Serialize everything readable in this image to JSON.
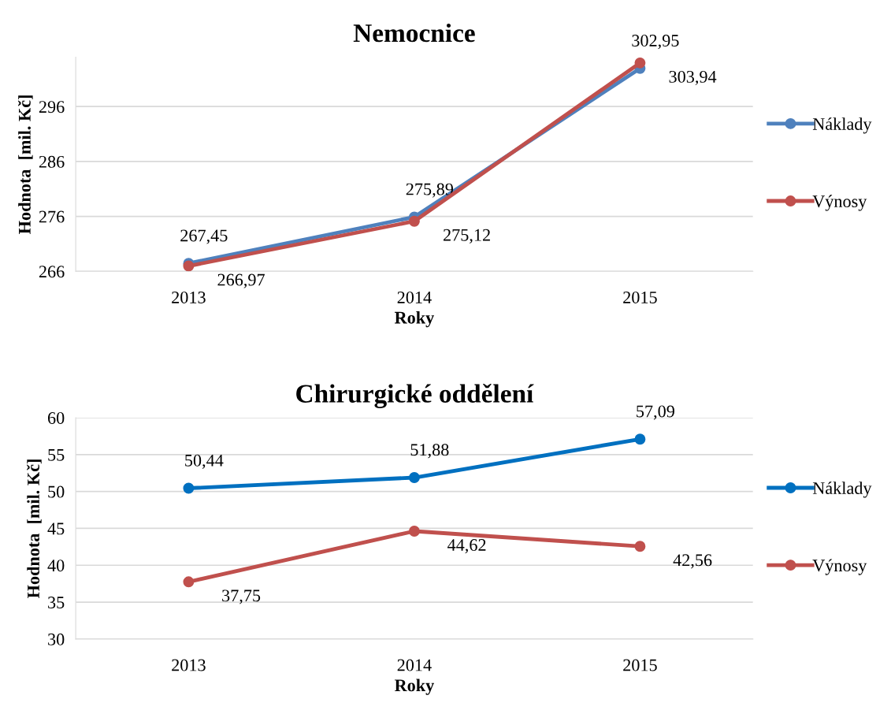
{
  "chart_data": [
    {
      "type": "line",
      "title": "Nemocnice",
      "xlabel": "Roky",
      "ylabel": "Hodnota  [mil. Kč]",
      "categories": [
        "2013",
        "2014",
        "2015"
      ],
      "ylim": [
        266,
        305
      ],
      "yticks": [
        266,
        276,
        286,
        296
      ],
      "grid": "y",
      "legend": "right",
      "marker": "circle",
      "line_style": "solid",
      "series": [
        {
          "name": "Náklady",
          "color": "#4f81bd",
          "values": [
            267.45,
            275.89,
            302.95
          ],
          "value_labels": [
            "267,45",
            "275,89",
            "302,95"
          ]
        },
        {
          "name": "Výnosy",
          "color": "#c0504d",
          "values": [
            266.97,
            275.12,
            303.94
          ],
          "value_labels": [
            "266,97",
            "275,12",
            "303,94"
          ]
        }
      ]
    },
    {
      "type": "line",
      "title": "Chirurgické oddělení",
      "xlabel": "Roky",
      "ylabel": "Hodnota  [mil. Kč]",
      "categories": [
        "2013",
        "2014",
        "2015"
      ],
      "ylim": [
        30,
        60
      ],
      "yticks": [
        30,
        35,
        40,
        45,
        50,
        55,
        60
      ],
      "grid": "y",
      "legend": "right",
      "marker": "circle",
      "line_style": "solid",
      "series": [
        {
          "name": "Náklady",
          "color": "#0070c0",
          "values": [
            50.44,
            51.88,
            57.09
          ],
          "value_labels": [
            "50,44",
            "51,88",
            "57,09"
          ]
        },
        {
          "name": "Výnosy",
          "color": "#c0504d",
          "values": [
            37.75,
            44.62,
            42.56
          ],
          "value_labels": [
            "37,75",
            "44,62",
            "42,56"
          ]
        }
      ]
    }
  ]
}
